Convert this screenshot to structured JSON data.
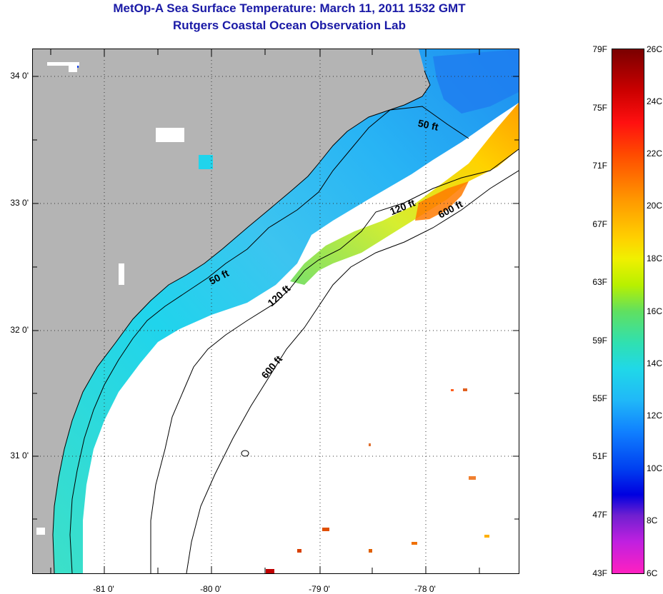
{
  "header": {
    "title": "MetOp-A Sea Surface Temperature:  March 11, 2011 1532 GMT",
    "subtitle": "Rutgers Coastal Ocean Observation Lab"
  },
  "axes": {
    "latitude_labels": [
      "34 0'",
      "33 0'",
      "32 0'",
      "31 0'"
    ],
    "longitude_labels": [
      "-81 0'",
      "-80 0'",
      "-79 0'",
      "-78 0'"
    ]
  },
  "contours": {
    "labels": [
      "50 ft",
      "120 ft",
      "600 ft",
      "50 ft",
      "120 ft",
      "600 ft"
    ]
  },
  "colorbar": {
    "fahrenheit_labels": [
      "79F",
      "75F",
      "71F",
      "67F",
      "63F",
      "59F",
      "55F",
      "51F",
      "47F",
      "43F"
    ],
    "celsius_labels": [
      "26C",
      "24C",
      "22C",
      "20C",
      "18C",
      "16C",
      "14C",
      "12C",
      "10C",
      "8C",
      "6C"
    ]
  },
  "colors": {
    "land": "#b4b4b4",
    "title": "#1a1aa6",
    "cloud": "#ffffff"
  }
}
